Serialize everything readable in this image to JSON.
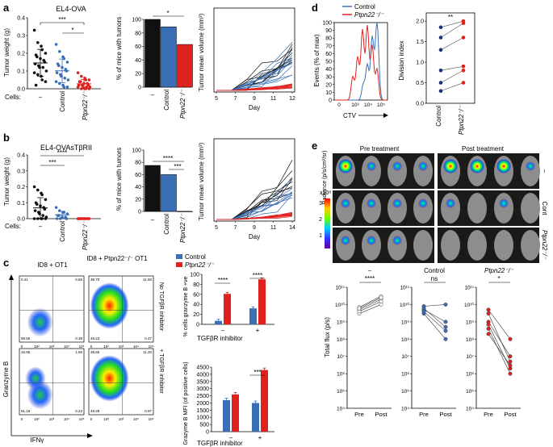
{
  "panel_labels": [
    "a",
    "b",
    "c",
    "d",
    "e"
  ],
  "colors": {
    "black": "#111111",
    "control": "#3a6fb5",
    "ptpn": "#e0221f",
    "dark_blue": "#1d2f6e",
    "grey": "#9a9a9a"
  },
  "panel_a": {
    "title": "EL4-OVA",
    "scatter": {
      "ylabel": "Tumor weight (g)",
      "yticks": [
        "0.0",
        "0.1",
        "0.2",
        "0.3",
        "0.4"
      ],
      "cells_label": "Cells:",
      "groups": [
        "–",
        "Control",
        "Ptpn22⁻/⁻"
      ],
      "sig": [
        "***",
        "*"
      ]
    },
    "bar": {
      "ylabel": "% of mice with tumors",
      "yticks": [
        "0",
        "20",
        "40",
        "60",
        "80",
        "100"
      ],
      "groups": [
        "–",
        "Control",
        "Ptpn22⁻/⁻"
      ],
      "sig": [
        "*"
      ]
    },
    "line": {
      "ylabel": "Tumor mean volume (mm³)",
      "xlabel": "Day",
      "xticks": [
        "5",
        "7",
        "9",
        "11",
        "12"
      ]
    }
  },
  "panel_b": {
    "title": "EL4-OVAsTβRII",
    "scatter": {
      "ylabel": "Tumor weight (g)",
      "yticks": [
        "0.0",
        "0.1",
        "0.2",
        "0.3",
        "0.4"
      ],
      "cells_label": "Cells:",
      "groups": [
        "–",
        "Control",
        "Ptpn22⁻/⁻"
      ],
      "sig": [
        "***",
        "****"
      ]
    },
    "bar": {
      "ylabel": "% of mice with tumors",
      "yticks": [
        "0",
        "20",
        "40",
        "60",
        "80",
        "100"
      ],
      "groups": [
        "–",
        "Control",
        "Ptpn22⁻/⁻"
      ],
      "sig": [
        "****",
        "***"
      ]
    },
    "line": {
      "ylabel": "Tumor mean volume (mm³)",
      "xlabel": "Day",
      "xticks": [
        "5",
        "7",
        "9",
        "11",
        "14"
      ]
    }
  },
  "panel_c": {
    "col_titles": [
      "ID8 + OT1",
      "ID8 + Ptpn22⁻/⁻ OT1"
    ],
    "row_titles": [
      "No TGFβR inhibitor",
      "+ TGFβR inhibitor"
    ],
    "xlabel": "IFNγ",
    "ylabel": "Granzyme B",
    "quadrant_values": [
      [
        "0.41",
        "0.65",
        "99.55",
        "0.39"
      ],
      [
        "38.70",
        "11.60",
        "49.23",
        "0.47"
      ],
      [
        "16.95",
        "1.66",
        "81.16",
        "0.23"
      ],
      [
        "38.55",
        "11.20",
        "49.28",
        "0.97"
      ]
    ],
    "legend": [
      "Control",
      "Ptpn22⁻/⁻"
    ],
    "bar_top": {
      "ylabel": "% cells granzyme B +ve",
      "yticks": [
        "0",
        "20",
        "40",
        "60",
        "80",
        "100"
      ],
      "sig": [
        "****",
        "****"
      ]
    },
    "bar_bottom": {
      "ylabel": "Grazyme B MFI (of positive cells)",
      "yticks": [
        "0",
        "500",
        "1000",
        "1500",
        "2000",
        "2500",
        "3000",
        "3500",
        "4000",
        "4500"
      ],
      "sig": [
        "***"
      ]
    },
    "xgroup_label": "TGFβR inhibitor",
    "xgroups": [
      "–",
      "+"
    ]
  },
  "panel_d": {
    "legend": [
      "Control",
      "Ptpn22⁻/⁻"
    ],
    "hist": {
      "ylabel": "Events (% of max)",
      "xlabel": "CTV",
      "yticks": [
        "0",
        "10",
        "20",
        "30",
        "40",
        "50",
        "60",
        "70",
        "80",
        "90",
        "100"
      ],
      "xticks": [
        "0",
        "10³",
        "10⁴",
        "10⁵"
      ]
    },
    "paired": {
      "ylabel": "Division index",
      "yticks": [
        "0.0",
        "0.5",
        "1.0",
        "1.5",
        "2.0"
      ],
      "groups": [
        "Control",
        "Ptpn22⁻/⁻"
      ],
      "sig": "**"
    }
  },
  "panel_e": {
    "pre": "Pre treatment",
    "post": "Post treatment",
    "radiance_label": "Radiance (p/s/cm²/sr)",
    "scale_unit": "x10⁸",
    "scale_ticks": [
      "3",
      "2",
      "1"
    ],
    "row_labels": [
      "–",
      "Cont",
      "Ptpn22⁻/⁻"
    ],
    "flux_plots": [
      {
        "title": "–",
        "sig": "****"
      },
      {
        "title": "Control",
        "sig": "ns"
      },
      {
        "title": "Ptpn22⁻/⁻",
        "sig": "*"
      }
    ],
    "flux_ylabel": "Total flux (p/s)",
    "flux_yticks": [
      "10⁴",
      "10⁵",
      "10⁶",
      "10⁷",
      "10⁸",
      "10⁹",
      "10¹⁰",
      "10¹¹"
    ],
    "flux_xticks": [
      "Pre",
      "Post"
    ]
  },
  "chart_data": [
    {
      "type": "scatter",
      "panel": "a",
      "categories": [
        "–",
        "Control",
        "Ptpn22-/-"
      ],
      "ylabel": "Tumor weight (g)",
      "ylim": [
        0,
        0.4
      ],
      "series": [
        {
          "values": [
            0.33,
            0.26,
            0.24,
            0.22,
            0.2,
            0.19,
            0.18,
            0.17,
            0.16,
            0.15,
            0.14,
            0.13,
            0.12,
            0.12,
            0.1,
            0.09,
            0.08,
            0.07,
            0.05,
            0.04,
            0.02
          ]
        },
        {
          "values": [
            0.25,
            0.21,
            0.18,
            0.17,
            0.15,
            0.14,
            0.13,
            0.12,
            0.11,
            0.1,
            0.09,
            0.08,
            0.07,
            0.06,
            0.05,
            0.04,
            0.03,
            0.02,
            0.01,
            0.01
          ]
        },
        {
          "values": [
            0.09,
            0.07,
            0.06,
            0.05,
            0.05,
            0.04,
            0.04,
            0.03,
            0.03,
            0.02,
            0.02,
            0.02,
            0.01,
            0.01,
            0.01,
            0.01,
            0.0,
            0.0,
            0.0,
            0.0
          ]
        }
      ]
    },
    {
      "type": "bar",
      "panel": "a",
      "categories": [
        "–",
        "Control",
        "Ptpn22-/-"
      ],
      "ylabel": "% of mice with tumors",
      "ylim": [
        0,
        100
      ],
      "values": [
        100,
        89,
        63
      ]
    },
    {
      "type": "line",
      "panel": "a",
      "xlabel": "Day",
      "ylabel": "Tumor mean volume (mm³)",
      "x": [
        5,
        7,
        9,
        10,
        11,
        12
      ]
    },
    {
      "type": "scatter",
      "panel": "b",
      "categories": [
        "–",
        "Control",
        "Ptpn22-/-"
      ],
      "ylabel": "Tumor weight (g)",
      "ylim": [
        0,
        0.4
      ],
      "series": [
        {
          "values": [
            0.2,
            0.18,
            0.16,
            0.15,
            0.12,
            0.1,
            0.09,
            0.08,
            0.07,
            0.06,
            0.05,
            0.04,
            0.03,
            0.02,
            0.01,
            0.0,
            0.0,
            0.0,
            0.0,
            0.0
          ]
        },
        {
          "values": [
            0.07,
            0.05,
            0.04,
            0.04,
            0.03,
            0.02,
            0.02,
            0.01,
            0.01,
            0.0,
            0.0,
            0.0
          ]
        },
        {
          "values": [
            0.0,
            0.0,
            0.0,
            0.0,
            0.0,
            0.0,
            0.0,
            0.0,
            0.0,
            0.0,
            0.0,
            0.0
          ]
        }
      ]
    },
    {
      "type": "bar",
      "panel": "b",
      "categories": [
        "–",
        "Control",
        "Ptpn22-/-"
      ],
      "ylabel": "% of mice with tumors",
      "ylim": [
        0,
        100
      ],
      "values": [
        75,
        60,
        0
      ]
    },
    {
      "type": "line",
      "panel": "b",
      "xlabel": "Day",
      "ylabel": "Tumor mean volume (mm³)",
      "x": [
        5,
        7,
        9,
        11,
        14
      ]
    },
    {
      "type": "bar",
      "panel": "c-top",
      "categories": [
        "–",
        "+"
      ],
      "ylabel": "% cells granzyme B +ve",
      "ylim": [
        0,
        100
      ],
      "series": [
        {
          "name": "Control",
          "values": [
            7,
            32
          ]
        },
        {
          "name": "Ptpn22-/-",
          "values": [
            61,
            90
          ]
        }
      ]
    },
    {
      "type": "bar",
      "panel": "c-bottom",
      "categories": [
        "–",
        "+"
      ],
      "ylabel": "Grazyme B MFI (of positive cells)",
      "ylim": [
        0,
        4500
      ],
      "series": [
        {
          "name": "Control",
          "values": [
            2200,
            2000
          ]
        },
        {
          "name": "Ptpn22-/-",
          "values": [
            2600,
            4300
          ]
        }
      ]
    },
    {
      "type": "line",
      "panel": "d-paired",
      "categories": [
        "Control",
        "Ptpn22-/-"
      ],
      "ylabel": "Division index",
      "ylim": [
        0,
        2.2
      ],
      "pairs": [
        [
          1.85,
          2.0
        ],
        [
          1.6,
          1.95
        ],
        [
          1.3,
          1.6
        ],
        [
          0.8,
          0.9
        ],
        [
          0.5,
          0.8
        ],
        [
          0.3,
          0.5
        ]
      ]
    },
    {
      "type": "line",
      "panel": "e-flux-none",
      "categories": [
        "Pre",
        "Post"
      ],
      "ylabel": "Total flux (p/s)",
      "log": true,
      "pairs": [
        [
          3000000000.0,
          10000000000.0
        ],
        [
          5000000000.0,
          20000000000.0
        ],
        [
          7000000000.0,
          30000000000.0
        ],
        [
          4000000000.0,
          15000000000.0
        ],
        [
          6000000000.0,
          25000000000.0
        ]
      ]
    },
    {
      "type": "line",
      "panel": "e-flux-control",
      "categories": [
        "Pre",
        "Post"
      ],
      "ylabel": "Total flux (p/s)",
      "log": true,
      "pairs": [
        [
          8000000000.0,
          10000000000.0
        ],
        [
          5000000000.0,
          1000000000.0
        ],
        [
          3000000000.0,
          100000000.0
        ],
        [
          6000000000.0,
          500000000.0
        ],
        [
          4000000000.0,
          300000000.0
        ]
      ]
    },
    {
      "type": "line",
      "panel": "e-flux-ptpn",
      "categories": [
        "Pre",
        "Post"
      ],
      "ylabel": "Total flux (p/s)",
      "log": true,
      "pairs": [
        [
          5000000000.0,
          100000000.0
        ],
        [
          3000000000.0,
          5000000.0
        ],
        [
          1000000000.0,
          10000000.0
        ],
        [
          700000000.0,
          2000000.0
        ],
        [
          400000000.0,
          1000000.0
        ],
        [
          200000000.0,
          3000000.0
        ]
      ]
    }
  ]
}
